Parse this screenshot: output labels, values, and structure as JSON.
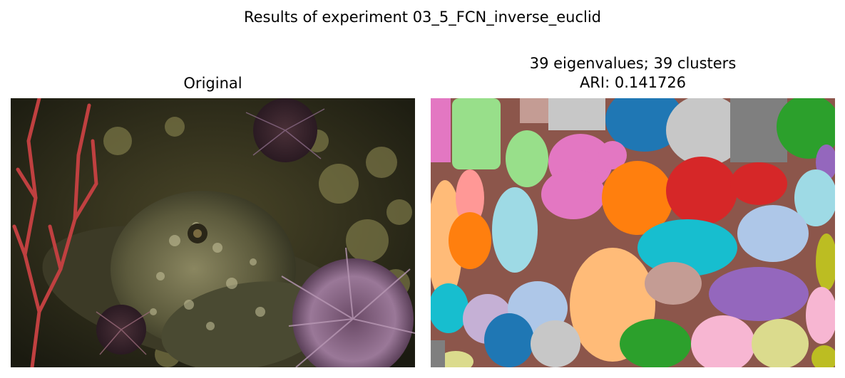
{
  "figure": {
    "suptitle": "Results of experiment 03_5_FCN_inverse_euclid"
  },
  "panels": [
    {
      "title": "Original",
      "image": "photo of a scorpion fish among sea urchins and red gorgonian coral"
    },
    {
      "title_line1": "39 eigenvalues; 39 clusters",
      "title_line2": "ARI: 0.141726",
      "image": "cluster segmentation map",
      "palette": [
        "#1f77b4",
        "#ff7f0e",
        "#2ca02c",
        "#d62728",
        "#9467bd",
        "#8c564b",
        "#e377c2",
        "#7f7f7f",
        "#bcbd22",
        "#17becf",
        "#aec7e8",
        "#ffbb78",
        "#98df8a",
        "#ff9896",
        "#c5b0d5",
        "#c49c94",
        "#f7b6d2",
        "#c7c7c7",
        "#dbdb8d",
        "#9edae5"
      ]
    }
  ]
}
